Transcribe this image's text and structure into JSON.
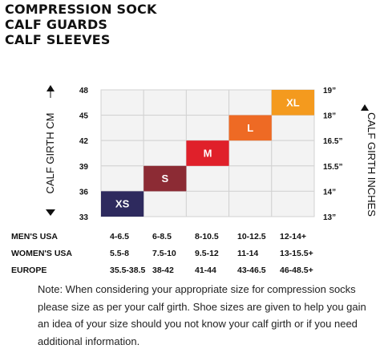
{
  "title": {
    "lines": [
      "COMPRESSION SOCK",
      "CALF GUARDS",
      "CALF SLEEVES"
    ]
  },
  "chart_data": {
    "type": "table",
    "y_left": {
      "label": "CALF GIRTH CM",
      "ticks": [
        "48",
        "45",
        "42",
        "39",
        "36",
        "33"
      ],
      "range": [
        33,
        48
      ]
    },
    "y_right": {
      "label": "CALF GIRTH INCHES",
      "ticks": [
        "19”",
        "18”",
        "16.5”",
        "15.5”",
        "14”",
        "13”"
      ]
    },
    "sizes": [
      {
        "label": "XS",
        "column": 0,
        "cm_range": [
          33,
          36
        ],
        "color": "#2e2a5e"
      },
      {
        "label": "S",
        "column": 1,
        "cm_range": [
          36,
          39
        ],
        "color": "#8c2b34"
      },
      {
        "label": "M",
        "column": 2,
        "cm_range": [
          39,
          42
        ],
        "color": "#e0202a"
      },
      {
        "label": "L",
        "column": 3,
        "cm_range": [
          42,
          45
        ],
        "color": "#ee6a24"
      },
      {
        "label": "XL",
        "column": 4,
        "cm_range": [
          45,
          48
        ],
        "color": "#f49a1e"
      }
    ],
    "grid": true,
    "shoe_sizes": [
      {
        "label": "MEN'S USA",
        "values": [
          "4-6.5",
          "6-8.5",
          "8-10.5",
          "10-12.5",
          "12-14+"
        ]
      },
      {
        "label": "WOMEN'S USA",
        "values": [
          "5.5-8",
          "7.5-10",
          "9.5-12",
          "11-14",
          "13-15.5+"
        ]
      },
      {
        "label": "EUROPE",
        "values": [
          "35.5-38.5",
          "38-42",
          "41-44",
          "43-46.5",
          "46-48.5+"
        ]
      }
    ]
  },
  "note": "Note: When considering your appropriate size for compression socks please size as per your calf girth. Shoe sizes are given to help you gain an idea of your size should you not know your calf girth or if you need additional information."
}
